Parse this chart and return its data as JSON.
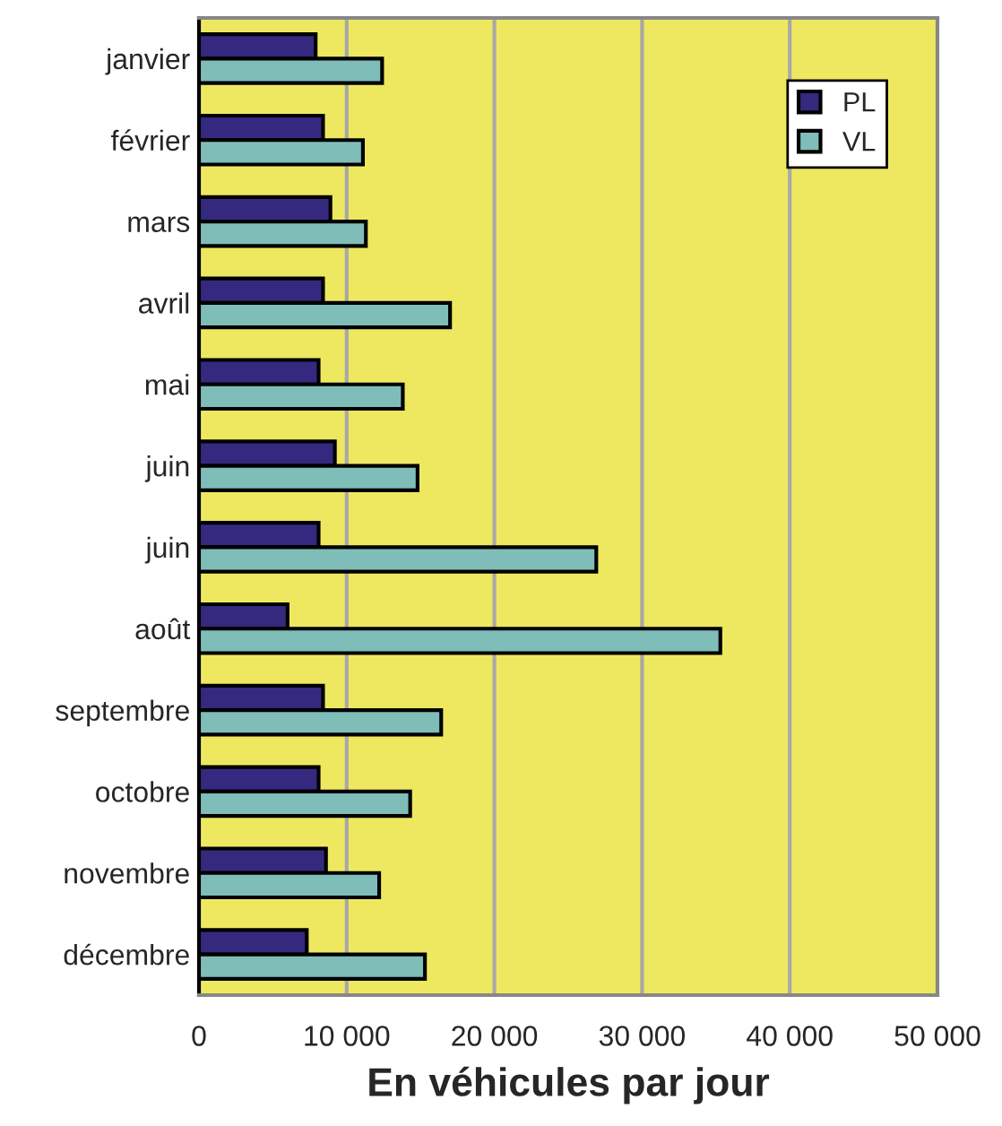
{
  "chart_data": {
    "type": "bar",
    "orientation": "horizontal",
    "xlabel": "En véhicules par jour",
    "categories": [
      "janvier",
      "février",
      "mars",
      "avril",
      "mai",
      "juin",
      "juin",
      "août",
      "septembre",
      "octobre",
      "novembre",
      "décembre"
    ],
    "series": [
      {
        "name": "PL",
        "color": "#35297f",
        "values": [
          7900,
          8400,
          8900,
          8400,
          8100,
          9200,
          8100,
          6000,
          8400,
          8100,
          8600,
          7300
        ]
      },
      {
        "name": "VL",
        "color": "#7fbdb9",
        "values": [
          12400,
          11100,
          11300,
          17000,
          13800,
          14800,
          26900,
          35300,
          16400,
          14300,
          12200,
          15300
        ]
      }
    ],
    "xlim": [
      0,
      50000
    ],
    "xticks": [
      0,
      {
        "value": 10000,
        "label": "10 000"
      },
      {
        "value": 20000,
        "label": "20 000"
      },
      {
        "value": 30000,
        "label": "30 000"
      },
      {
        "value": 40000,
        "label": "40 000"
      },
      {
        "value": 50000,
        "label": "50 000"
      }
    ],
    "grid": "x",
    "legend": "top right"
  }
}
